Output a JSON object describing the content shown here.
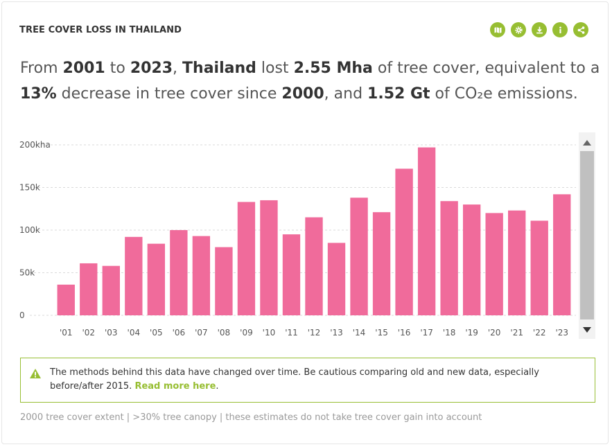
{
  "widget": {
    "title": "TREE COVER LOSS IN THAILAND",
    "toolbar": [
      {
        "icon": "map-icon"
      },
      {
        "icon": "gear-icon"
      },
      {
        "icon": "download-icon"
      },
      {
        "icon": "info-icon"
      },
      {
        "icon": "share-icon"
      }
    ]
  },
  "sentence": {
    "p1": "From ",
    "start_year": "2001",
    "p2": " to ",
    "end_year": "2023",
    "p3": ", ",
    "location": "Thailand",
    "p4": " lost ",
    "loss": "2.55 Mha",
    "p5": " of tree cover, equivalent to a ",
    "percent": "13%",
    "p6": " decrease in tree cover since ",
    "baseline_year": "2000",
    "p7": ", and ",
    "emissions": "1.52 Gt",
    "p8": " of CO₂e emissions."
  },
  "chart_data": {
    "type": "bar",
    "categories": [
      "'01",
      "'02",
      "'03",
      "'04",
      "'05",
      "'06",
      "'07",
      "'08",
      "'09",
      "'10",
      "'11",
      "'12",
      "'13",
      "'14",
      "'15",
      "'16",
      "'17",
      "'18",
      "'19",
      "'20",
      "'21",
      "'22",
      "'23"
    ],
    "values": [
      36000,
      61000,
      58000,
      92000,
      84000,
      100000,
      93000,
      80000,
      133000,
      135000,
      95000,
      115000,
      85000,
      138000,
      121000,
      172000,
      197000,
      134000,
      130000,
      120000,
      123000,
      111000,
      142000
    ],
    "ylim": [
      0,
      200000
    ],
    "yticks": [
      "0",
      "50k",
      "100k",
      "150k",
      "200kha"
    ],
    "bar_color": "#f06b9b",
    "grid": "horizontal dashed"
  },
  "warning": {
    "text": "The methods behind this data have changed over time. Be cautious comparing old and new data, especially before/after 2015. ",
    "link": "Read more here",
    "suffix": "."
  },
  "footnote": "2000 tree cover extent | >30% tree canopy | these estimates do not take tree cover gain into account",
  "colors": {
    "accent": "#97be32",
    "bar": "#f06b9b"
  }
}
